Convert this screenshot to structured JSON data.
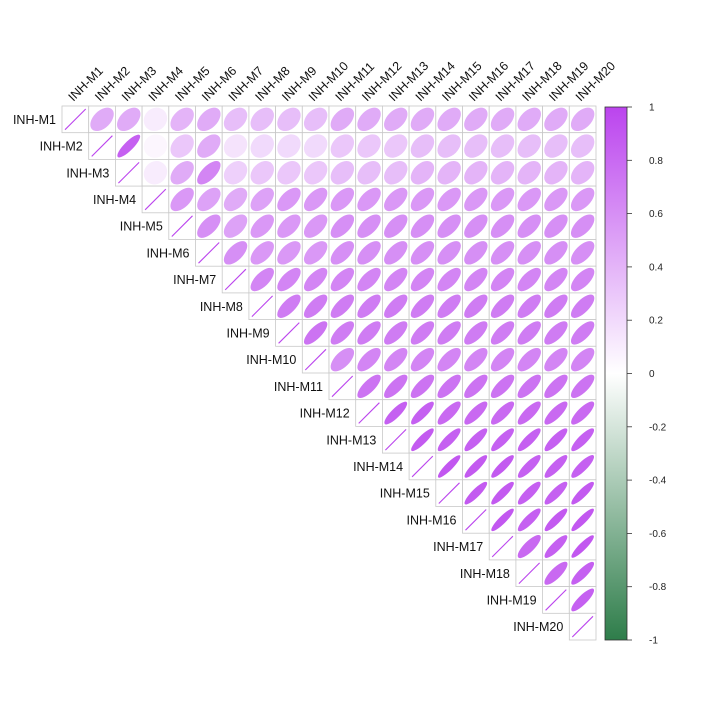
{
  "chart_data": {
    "type": "heatmap",
    "subtype": "correlation-ellipse-upper-triangle",
    "title": "",
    "variables": [
      "INH-M1",
      "INH-M2",
      "INH-M3",
      "INH-M4",
      "INH-M5",
      "INH-M6",
      "INH-M7",
      "INH-M8",
      "INH-M9",
      "INH-M10",
      "INH-M11",
      "INH-M12",
      "INH-M13",
      "INH-M14",
      "INH-M15",
      "INH-M16",
      "INH-M17",
      "INH-M18",
      "INH-M19",
      "INH-M20"
    ],
    "matrix_upper": [
      [
        1,
        0.45,
        0.45,
        0.1,
        0.4,
        0.45,
        0.35,
        0.35,
        0.35,
        0.35,
        0.45,
        0.45,
        0.45,
        0.45,
        0.45,
        0.45,
        0.45,
        0.45,
        0.45,
        0.45
      ],
      [
        1,
        0.85,
        0.05,
        0.3,
        0.45,
        0.15,
        0.2,
        0.2,
        0.2,
        0.3,
        0.3,
        0.3,
        0.35,
        0.35,
        0.35,
        0.35,
        0.35,
        0.35,
        0.35
      ],
      [
        1,
        0.1,
        0.45,
        0.65,
        0.25,
        0.3,
        0.3,
        0.3,
        0.35,
        0.35,
        0.35,
        0.4,
        0.4,
        0.4,
        0.4,
        0.4,
        0.4,
        0.4
      ],
      [
        1,
        0.55,
        0.5,
        0.45,
        0.5,
        0.55,
        0.55,
        0.55,
        0.55,
        0.55,
        0.55,
        0.55,
        0.55,
        0.55,
        0.55,
        0.55,
        0.55
      ],
      [
        1,
        0.6,
        0.5,
        0.55,
        0.55,
        0.55,
        0.6,
        0.6,
        0.6,
        0.6,
        0.6,
        0.6,
        0.6,
        0.6,
        0.6,
        0.6
      ],
      [
        1,
        0.6,
        0.55,
        0.55,
        0.55,
        0.6,
        0.6,
        0.6,
        0.6,
        0.6,
        0.6,
        0.6,
        0.6,
        0.6,
        0.6
      ],
      [
        1,
        0.65,
        0.65,
        0.65,
        0.65,
        0.65,
        0.65,
        0.65,
        0.65,
        0.65,
        0.65,
        0.65,
        0.65,
        0.65
      ],
      [
        1,
        0.7,
        0.7,
        0.7,
        0.7,
        0.7,
        0.7,
        0.7,
        0.7,
        0.7,
        0.7,
        0.7,
        0.7
      ],
      [
        1,
        0.75,
        0.7,
        0.7,
        0.7,
        0.7,
        0.7,
        0.7,
        0.7,
        0.7,
        0.7,
        0.7
      ],
      [
        1,
        0.6,
        0.65,
        0.65,
        0.65,
        0.65,
        0.65,
        0.65,
        0.65,
        0.65,
        0.65
      ],
      [
        1,
        0.75,
        0.75,
        0.75,
        0.75,
        0.75,
        0.75,
        0.75,
        0.75,
        0.75
      ],
      [
        1,
        0.85,
        0.85,
        0.8,
        0.8,
        0.8,
        0.8,
        0.8,
        0.8
      ],
      [
        1,
        0.88,
        0.85,
        0.85,
        0.85,
        0.85,
        0.85,
        0.85
      ],
      [
        1,
        0.9,
        0.88,
        0.88,
        0.85,
        0.85,
        0.85
      ],
      [
        1,
        0.88,
        0.88,
        0.85,
        0.85,
        0.88
      ],
      [
        1,
        0.9,
        0.85,
        0.88,
        0.9
      ],
      [
        1,
        0.8,
        0.85,
        0.9
      ],
      [
        1,
        0.8,
        0.85
      ],
      [
        1,
        0.85
      ],
      [
        1
      ]
    ],
    "colorbar": {
      "min": -1,
      "max": 1,
      "ticks": [
        "1",
        "0.8",
        "0.6",
        "0.4",
        "0.2",
        "0",
        "-0.2",
        "-0.4",
        "-0.6",
        "-0.8",
        "-1"
      ],
      "colors": {
        "positive": "#bb44ee",
        "zero": "#ffffff",
        "negative": "#2e7d4a"
      }
    },
    "grid": true,
    "legend_position": "right"
  }
}
